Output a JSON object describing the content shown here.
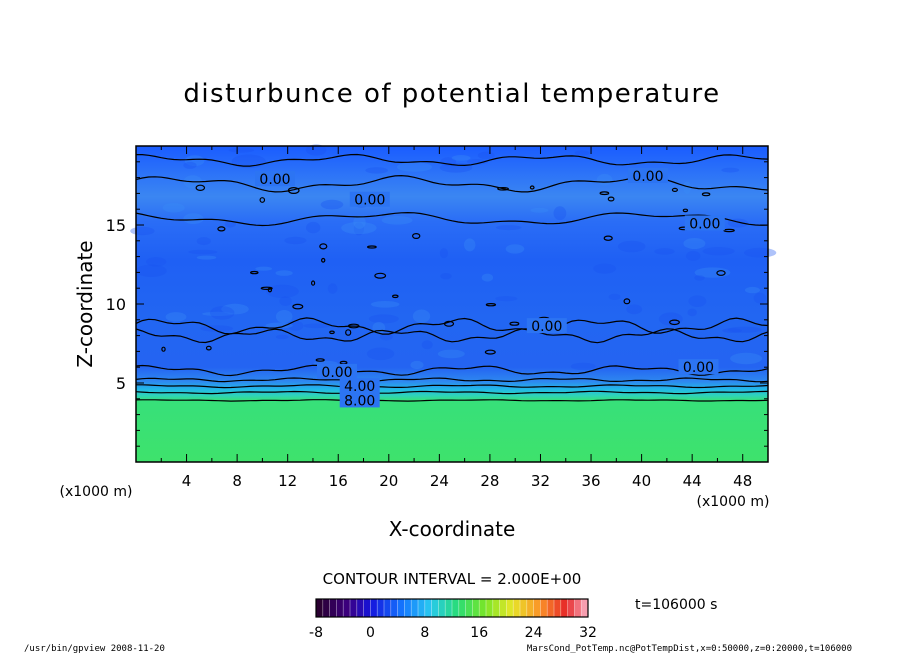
{
  "chart_data": {
    "type": "heatmap",
    "title": "disturbunce of potential temperature",
    "xlabel": "X-coordinate",
    "ylabel": "Z-coordinate",
    "x_unit_left": "(x1000 m)",
    "x_unit_right": "(x1000 m)",
    "xlim": [
      0,
      50
    ],
    "ylim": [
      0,
      20
    ],
    "x_ticks": [
      4,
      8,
      12,
      16,
      20,
      24,
      28,
      32,
      36,
      40,
      44,
      48
    ],
    "y_ticks": [
      5,
      10,
      15
    ],
    "contour_interval_text": "CONTOUR INTERVAL = 2.000E+00",
    "time_text": "t=106000 s",
    "colorbar": {
      "min": -8,
      "max": 32,
      "ticks": [
        -8,
        0,
        8,
        16,
        24,
        32
      ]
    },
    "contour_labels": [
      {
        "text": "0.00",
        "x": 11,
        "z": 17.9
      },
      {
        "text": "0.00",
        "x": 18.5,
        "z": 16.6
      },
      {
        "text": "0.00",
        "x": 40.5,
        "z": 18.1
      },
      {
        "text": "0.00",
        "x": 45,
        "z": 15.1
      },
      {
        "text": "0.00",
        "x": 32.5,
        "z": 8.6
      },
      {
        "text": "0.00",
        "x": 15.9,
        "z": 5.7
      },
      {
        "text": "0.00",
        "x": 44.5,
        "z": 6.0
      },
      {
        "text": "4.00",
        "x": 17.7,
        "z": 4.8
      },
      {
        "text": "8.00",
        "x": 17.7,
        "z": 3.9
      }
    ]
  },
  "footer": {
    "left": "/usr/bin/gpview   2008-11-20",
    "right": "MarsCond_PotTemp.nc@PotTempDist,x=0:50000,z=0:20000,t=106000"
  }
}
